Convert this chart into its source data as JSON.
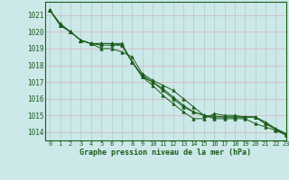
{
  "title": "Graphe pression niveau de la mer (hPa)",
  "bg_color": "#cce8e8",
  "grid_color": "#aacece",
  "line_color": "#1a5c1a",
  "xlim": [
    -0.5,
    23
  ],
  "ylim": [
    1013.5,
    1021.8
  ],
  "yticks": [
    1014,
    1015,
    1016,
    1017,
    1018,
    1019,
    1020,
    1021
  ],
  "xticks": [
    0,
    1,
    2,
    3,
    4,
    5,
    6,
    7,
    8,
    9,
    10,
    11,
    12,
    13,
    14,
    15,
    16,
    17,
    18,
    19,
    20,
    21,
    22,
    23
  ],
  "series": [
    [
      1021.3,
      1020.5,
      1020.0,
      1019.5,
      1019.3,
      1019.0,
      1019.0,
      1018.8,
      1018.5,
      1017.5,
      1017.1,
      1016.8,
      1016.5,
      1016.0,
      1015.5,
      1015.0,
      1014.8,
      1014.8,
      1014.8,
      1014.8,
      1014.5,
      1014.3,
      1014.1,
      1013.8
    ],
    [
      1021.3,
      1020.4,
      1020.0,
      1019.5,
      1019.3,
      1019.2,
      1019.2,
      1019.2,
      1018.2,
      1017.3,
      1017.0,
      1016.6,
      1016.1,
      1015.6,
      1015.2,
      1015.0,
      1014.9,
      1014.9,
      1014.9,
      1014.9,
      1014.9,
      1014.6,
      1014.2,
      1013.9
    ],
    [
      1021.3,
      1020.4,
      1020.0,
      1019.5,
      1019.3,
      1019.3,
      1019.3,
      1019.3,
      1018.2,
      1017.4,
      1017.0,
      1016.5,
      1016.0,
      1015.5,
      1015.2,
      1015.0,
      1014.95,
      1014.9,
      1014.9,
      1014.9,
      1014.9,
      1014.5,
      1014.2,
      1013.9
    ],
    [
      1021.3,
      1020.4,
      1020.0,
      1019.5,
      1019.3,
      1019.3,
      1019.3,
      1019.2,
      1018.2,
      1017.3,
      1016.8,
      1016.2,
      1015.7,
      1015.2,
      1014.8,
      1014.8,
      1015.1,
      1015.0,
      1015.0,
      1014.9,
      1014.9,
      1014.5,
      1014.15,
      1013.85
    ]
  ]
}
